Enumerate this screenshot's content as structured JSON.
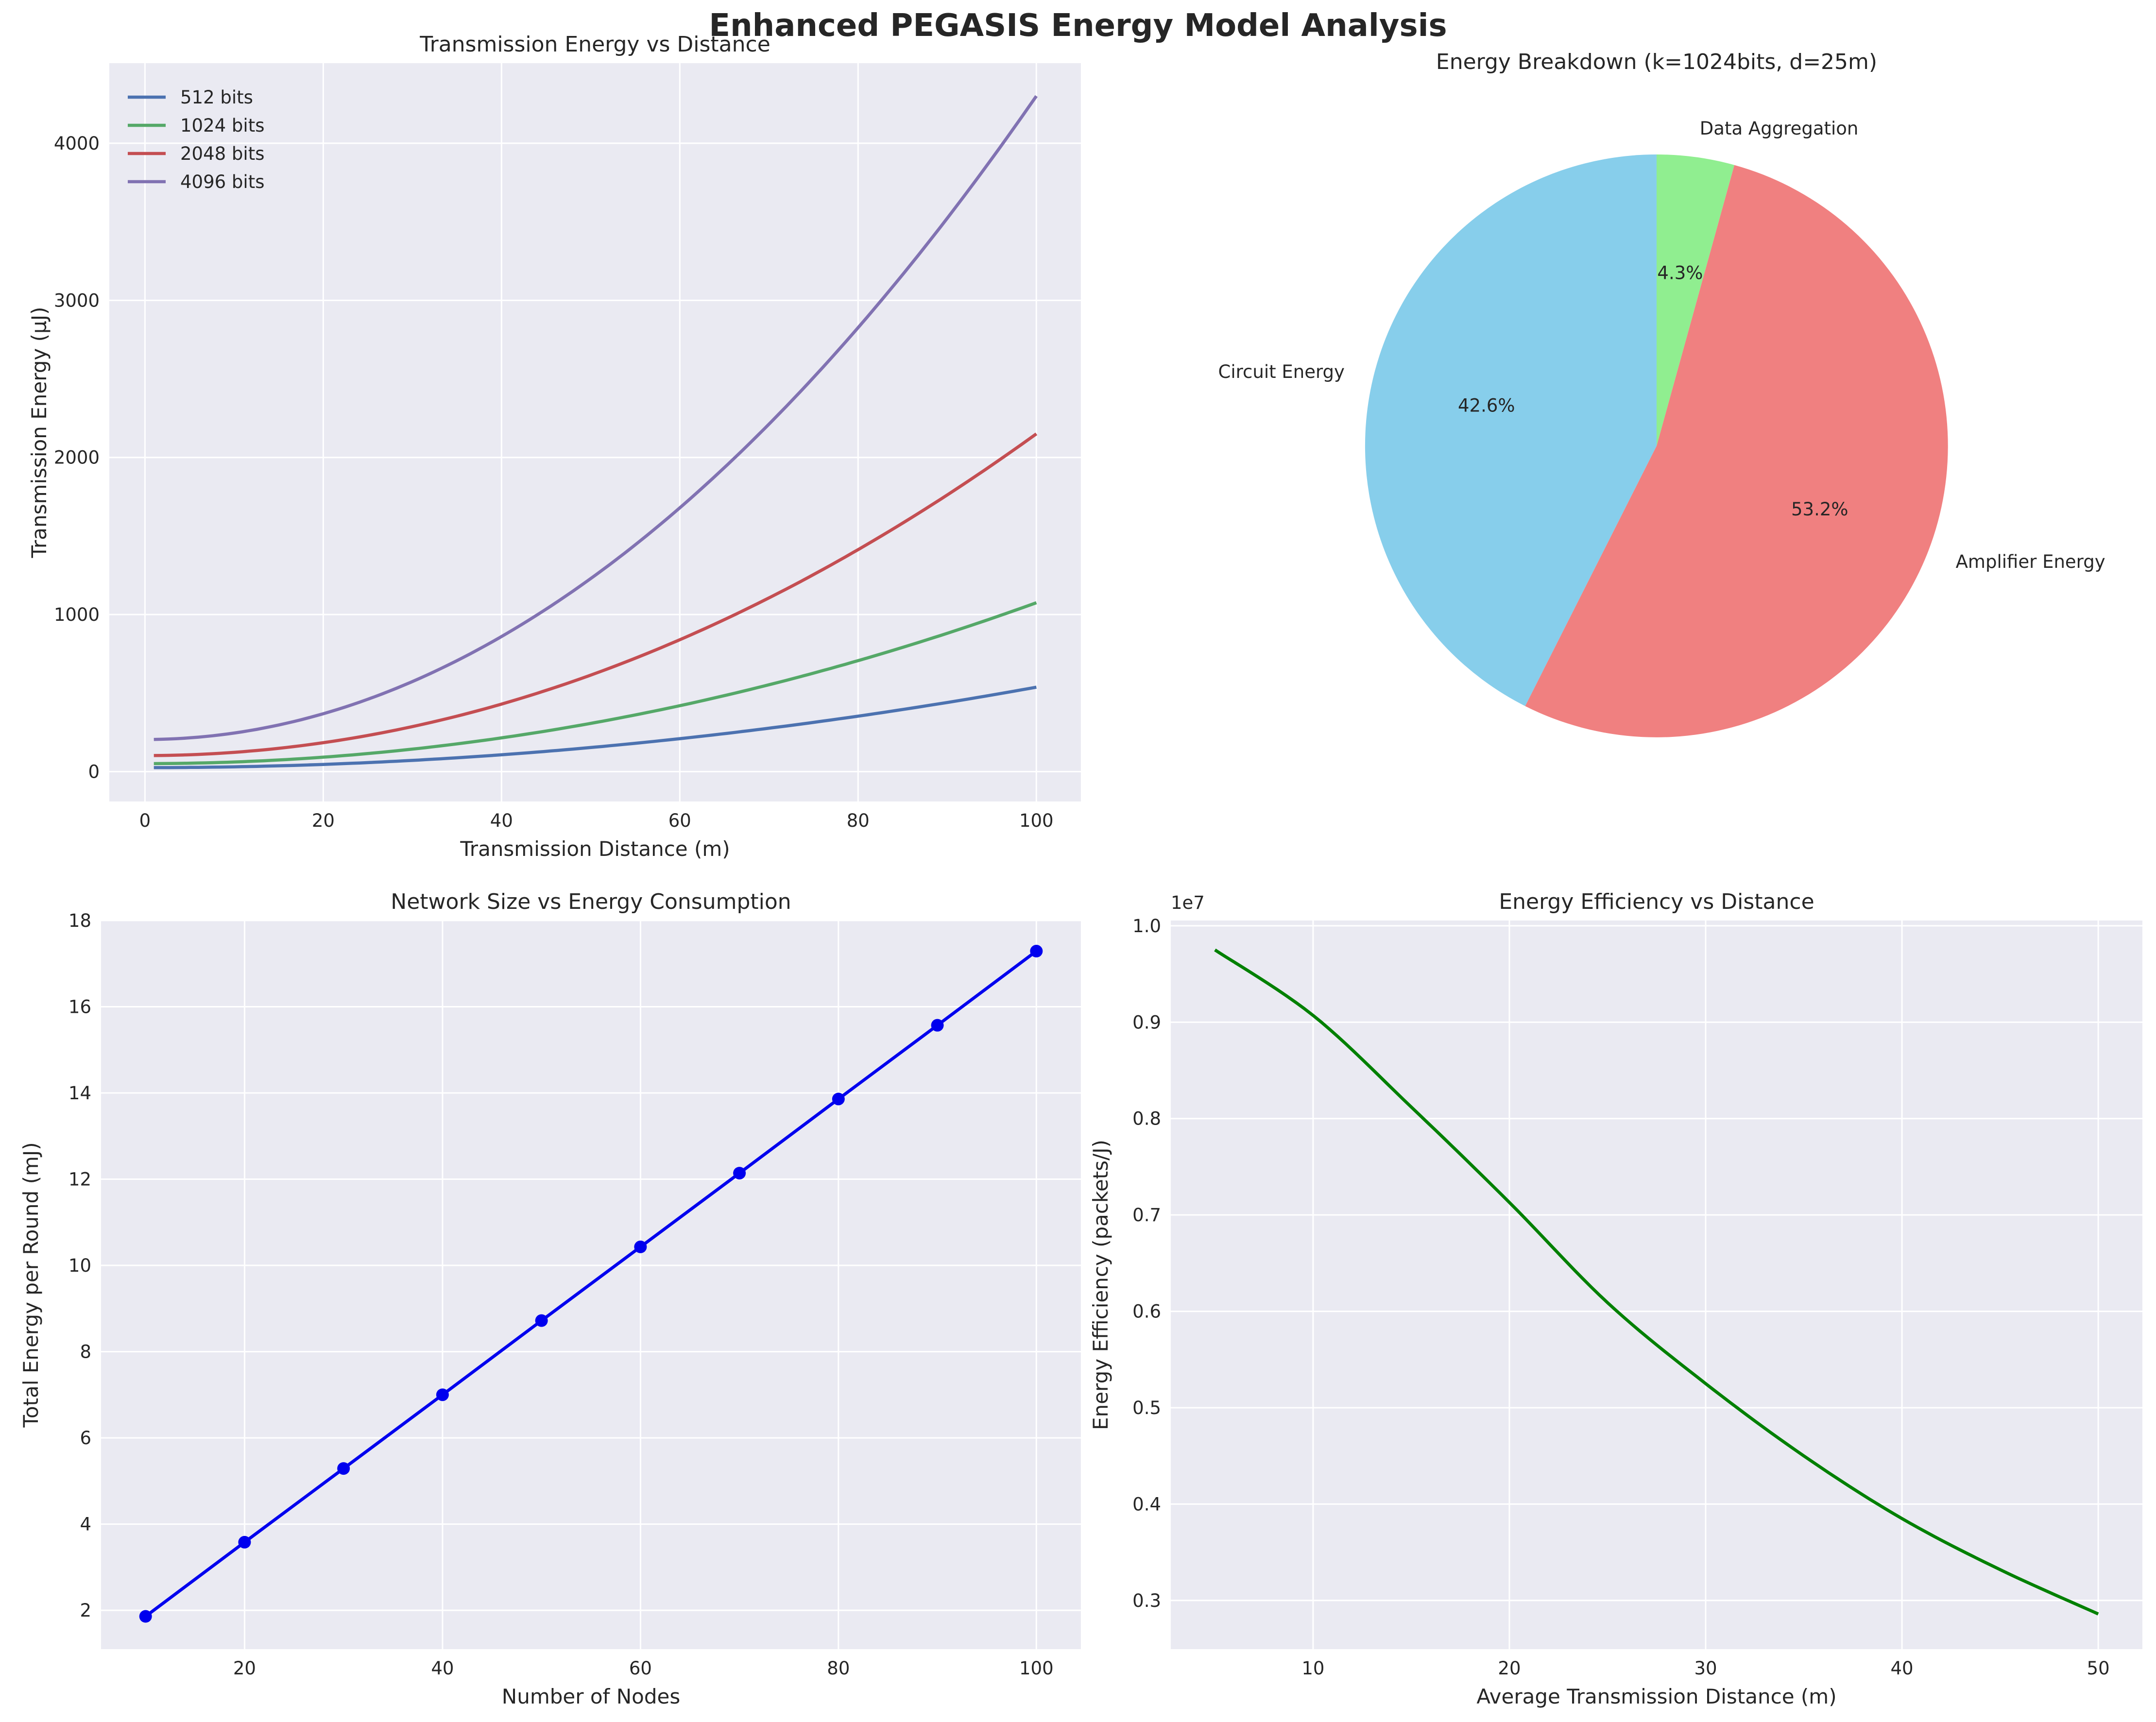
{
  "figure": {
    "title": "Enhanced PEGASIS Energy Model Analysis",
    "background": "#ffffff",
    "axes_background": "#eaeaf2"
  },
  "chart_data": [
    {
      "id": "tx",
      "type": "line",
      "title": "Transmission Energy vs Distance",
      "xlabel": "Transmission Distance (m)",
      "ylabel": "Transmission Energy (µJ)",
      "xlim": [
        -4,
        105
      ],
      "ylim": [
        -190,
        4510
      ],
      "xticks": [
        0,
        20,
        40,
        60,
        80,
        100
      ],
      "yticks": [
        0,
        1000,
        2000,
        3000,
        4000
      ],
      "grid": true,
      "legend": "top-left",
      "model": {
        "x_from": 1,
        "x_to": 100,
        "e_elec_nJ_per_bit": 50,
        "e_amp_pJ_per_bit_m2": 100
      },
      "series": [
        {
          "name": "512 bits",
          "bits": 512,
          "color": "#4c72b0",
          "x": [
            1,
            20,
            40,
            60,
            80,
            100
          ],
          "y": [
            25.7,
            46.5,
            107.5,
            209.9,
            353.3,
            537.6
          ]
        },
        {
          "name": "1024 bits",
          "bits": 1024,
          "color": "#55a868",
          "x": [
            1,
            20,
            40,
            60,
            80,
            100
          ],
          "y": [
            51.3,
            92.2,
            215.0,
            419.8,
            706.6,
            1075.2
          ]
        },
        {
          "name": "2048 bits",
          "bits": 2048,
          "color": "#c44e52",
          "x": [
            1,
            20,
            40,
            60,
            80,
            100
          ],
          "y": [
            102.6,
            184.3,
            430.1,
            839.7,
            1413.1,
            2150.4
          ]
        },
        {
          "name": "4096 bits",
          "bits": 4096,
          "color": "#8172b2",
          "x": [
            1,
            20,
            40,
            60,
            80,
            100
          ],
          "y": [
            205.2,
            368.6,
            860.2,
            1679.4,
            2826.2,
            4300.8
          ]
        }
      ]
    },
    {
      "id": "pie",
      "type": "pie",
      "title": "Energy Breakdown (k=1024bits, d=25m)",
      "start_angle": 90,
      "direction": "counterclockwise",
      "slices": [
        {
          "label": "Circuit Energy",
          "percent": 42.6,
          "pct_label": "42.6%",
          "color": "#87ceeb"
        },
        {
          "label": "Amplifier Energy",
          "percent": 53.2,
          "pct_label": "53.2%",
          "color": "#f08080"
        },
        {
          "label": "Data Aggregation",
          "percent": 4.3,
          "pct_label": "4.3%",
          "color": "#90ee90"
        }
      ]
    },
    {
      "id": "net",
      "type": "line",
      "title": "Network Size vs Energy Consumption",
      "xlabel": "Number of Nodes",
      "ylabel": "Total Energy per Round (mJ)",
      "xlim": [
        5.5,
        104.5
      ],
      "ylim": [
        1.1,
        18.0
      ],
      "xticks": [
        20,
        40,
        60,
        80,
        100
      ],
      "yticks": [
        2,
        4,
        6,
        8,
        10,
        12,
        14,
        16,
        18
      ],
      "grid": true,
      "markers": true,
      "series": [
        {
          "name": "",
          "color": "#0000ee",
          "x": [
            10,
            20,
            30,
            40,
            50,
            60,
            70,
            80,
            90,
            100
          ],
          "y": [
            1.86,
            3.58,
            5.29,
            7.0,
            8.72,
            10.43,
            12.14,
            13.86,
            15.57,
            17.29
          ]
        }
      ]
    },
    {
      "id": "eff",
      "type": "line",
      "title": "Energy Efficiency vs Distance",
      "xlabel": "Average Transmission Distance (m)",
      "ylabel": "Energy Efficiency (packets/J)",
      "offset_text": "1e7",
      "xlim": [
        2.75,
        52.25
      ],
      "ylim": [
        0.2495,
        1.0055
      ],
      "xticks": [
        10,
        20,
        30,
        40,
        50
      ],
      "yticks": [
        0.3,
        0.4,
        0.5,
        0.6,
        0.7,
        0.8,
        0.9,
        1.0
      ],
      "ytick_labels": [
        "0.3",
        "0.4",
        "0.5",
        "0.6",
        "0.7",
        "0.8",
        "0.9",
        "1.0"
      ],
      "grid": true,
      "series": [
        {
          "name": "",
          "color": "#008000",
          "x": [
            5,
            10,
            15,
            20,
            25,
            30,
            35,
            40,
            45,
            50
          ],
          "y": [
            0.975,
            0.907,
            0.812,
            0.713,
            0.609,
            0.525,
            0.45,
            0.385,
            0.332,
            0.286
          ]
        }
      ]
    }
  ]
}
